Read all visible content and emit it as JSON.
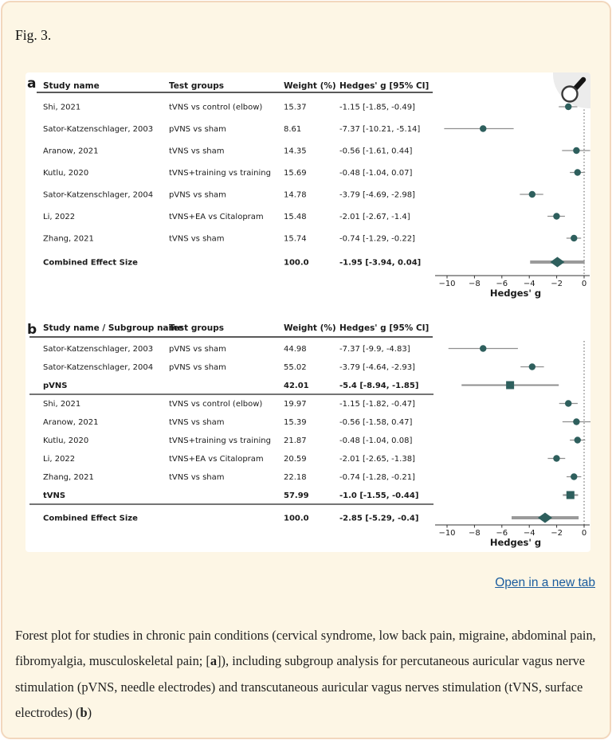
{
  "interface": {
    "figure_label": "Fig. 3.",
    "open_link_label": "Open in a new tab"
  },
  "caption": {
    "segments": [
      {
        "t": "Forest plot for studies in chronic pain conditions (cervical syndrome, low back pain, migraine, abdominal pain, fibromyalgia, musculoskeletal pain; [",
        "b": false
      },
      {
        "t": "a",
        "b": true
      },
      {
        "t": "]), including subgroup analysis for percutaneous auricular vagus nerve stimulation (pVNS, needle electrodes) and transcutaneous auricular vagus nerves stimulation (tVNS, surface electrodes) (",
        "b": false
      },
      {
        "t": "b",
        "b": true
      },
      {
        "t": ")",
        "b": false
      }
    ]
  },
  "colors": {
    "page_background": "#fdf6e5",
    "page_border": "#f2d7bd",
    "figure_background": "#ffffff",
    "marker_teal": "#2e5f5d",
    "ci_gray": "#8f8f8f",
    "summary_ci_gray": "#9a9a9a",
    "link_blue": "#1a5c9e",
    "table_line": "#222222"
  },
  "chart_data": [
    {
      "panel": "a",
      "type": "forest",
      "columns": [
        "Study name",
        "Test groups",
        "Weight (%)",
        "Hedges' g [95% CI]"
      ],
      "xlabel": "Hedges' g",
      "xticks": [
        -10,
        -8,
        -6,
        -4,
        -2,
        0
      ],
      "xlim": [
        -10.8,
        1.0
      ],
      "zero_line": 0,
      "rows": [
        {
          "study": "Shi, 2021",
          "group": "tVNS vs control (elbow)",
          "weight": "15.37",
          "ci_text": "-1.15 [-1.85, -0.49]",
          "g": -1.15,
          "lo": -1.85,
          "hi": -0.49,
          "marker": "circle",
          "bold": false,
          "sep_after": false
        },
        {
          "study": "Sator-Katzenschlager, 2003",
          "group": "pVNS vs sham",
          "weight": "8.61",
          "ci_text": "-7.37 [-10.21, -5.14]",
          "g": -7.37,
          "lo": -10.21,
          "hi": -5.14,
          "marker": "circle",
          "bold": false,
          "sep_after": false
        },
        {
          "study": "Aranow, 2021",
          "group": "tVNS vs sham",
          "weight": "14.35",
          "ci_text": "-0.56 [-1.61, 0.44]",
          "g": -0.56,
          "lo": -1.61,
          "hi": 0.44,
          "marker": "circle",
          "bold": false,
          "sep_after": false
        },
        {
          "study": "Kutlu, 2020",
          "group": "tVNS+training vs training",
          "weight": "15.69",
          "ci_text": "-0.48 [-1.04, 0.07]",
          "g": -0.48,
          "lo": -1.04,
          "hi": 0.07,
          "marker": "circle",
          "bold": false,
          "sep_after": false
        },
        {
          "study": "Sator-Katzenschlager, 2004",
          "group": "pVNS vs sham",
          "weight": "14.78",
          "ci_text": "-3.79 [-4.69, -2.98]",
          "g": -3.79,
          "lo": -4.69,
          "hi": -2.98,
          "marker": "circle",
          "bold": false,
          "sep_after": false
        },
        {
          "study": "Li, 2022",
          "group": "tVNS+EA vs Citalopram",
          "weight": "15.48",
          "ci_text": "-2.01 [-2.67, -1.4]",
          "g": -2.01,
          "lo": -2.67,
          "hi": -1.4,
          "marker": "circle",
          "bold": false,
          "sep_after": false
        },
        {
          "study": "Zhang, 2021",
          "group": "tVNS vs sham",
          "weight": "15.74",
          "ci_text": "-0.74 [-1.29, -0.22]",
          "g": -0.74,
          "lo": -1.29,
          "hi": -0.22,
          "marker": "circle",
          "bold": false,
          "sep_after": false
        },
        {
          "study": "Combined Effect Size",
          "group": "",
          "weight": "100.0",
          "ci_text": "-1.95 [-3.94, 0.04]",
          "g": -1.95,
          "lo": -3.94,
          "hi": 0.04,
          "marker": "diamond",
          "bold": true,
          "sep_after": false
        }
      ]
    },
    {
      "panel": "b",
      "type": "forest",
      "columns": [
        "Study name / Subgroup name",
        "Test groups",
        "Weight (%)",
        "Hedges' g [95% CI]"
      ],
      "xlabel": "Hedges' g",
      "xticks": [
        -10,
        -8,
        -6,
        -4,
        -2,
        0
      ],
      "xlim": [
        -10.8,
        1.0
      ],
      "zero_line": 0,
      "rows": [
        {
          "study": "Sator-Katzenschlager, 2003",
          "group": "pVNS vs sham",
          "weight": "44.98",
          "ci_text": "-7.37 [-9.9, -4.83]",
          "g": -7.37,
          "lo": -9.9,
          "hi": -4.83,
          "marker": "circle",
          "bold": false,
          "sep_after": false
        },
        {
          "study": "Sator-Katzenschlager, 2004",
          "group": "pVNS vs sham",
          "weight": "55.02",
          "ci_text": "-3.79 [-4.64, -2.93]",
          "g": -3.79,
          "lo": -4.64,
          "hi": -2.93,
          "marker": "circle",
          "bold": false,
          "sep_after": false
        },
        {
          "study": "pVNS",
          "group": "",
          "weight": "42.01",
          "ci_text": "-5.4 [-8.94, -1.85]",
          "g": -5.4,
          "lo": -8.94,
          "hi": -1.85,
          "marker": "square",
          "bold": true,
          "sep_after": true
        },
        {
          "study": "Shi, 2021",
          "group": "tVNS vs control (elbow)",
          "weight": "19.97",
          "ci_text": "-1.15 [-1.82, -0.47]",
          "g": -1.15,
          "lo": -1.82,
          "hi": -0.47,
          "marker": "circle",
          "bold": false,
          "sep_after": false
        },
        {
          "study": "Aranow, 2021",
          "group": "tVNS vs sham",
          "weight": "15.39",
          "ci_text": "-0.56 [-1.58, 0.47]",
          "g": -0.56,
          "lo": -1.58,
          "hi": 0.47,
          "marker": "circle",
          "bold": false,
          "sep_after": false
        },
        {
          "study": "Kutlu, 2020",
          "group": "tVNS+training vs training",
          "weight": "21.87",
          "ci_text": "-0.48 [-1.04, 0.08]",
          "g": -0.48,
          "lo": -1.04,
          "hi": 0.08,
          "marker": "circle",
          "bold": false,
          "sep_after": false
        },
        {
          "study": "Li, 2022",
          "group": "tVNS+EA vs Citalopram",
          "weight": "20.59",
          "ci_text": "-2.01 [-2.65, -1.38]",
          "g": -2.01,
          "lo": -2.65,
          "hi": -1.38,
          "marker": "circle",
          "bold": false,
          "sep_after": false
        },
        {
          "study": "Zhang, 2021",
          "group": "tVNS vs sham",
          "weight": "22.18",
          "ci_text": "-0.74 [-1.28, -0.21]",
          "g": -0.74,
          "lo": -1.28,
          "hi": -0.21,
          "marker": "circle",
          "bold": false,
          "sep_after": false
        },
        {
          "study": "tVNS",
          "group": "",
          "weight": "57.99",
          "ci_text": "-1.0 [-1.55, -0.44]",
          "g": -1.0,
          "lo": -1.55,
          "hi": -0.44,
          "marker": "square",
          "bold": true,
          "sep_after": true
        },
        {
          "study": "Combined Effect Size",
          "group": "",
          "weight": "100.0",
          "ci_text": "-2.85 [-5.29, -0.4]",
          "g": -2.85,
          "lo": -5.29,
          "hi": -0.4,
          "marker": "diamond",
          "bold": true,
          "sep_after": false
        }
      ]
    }
  ]
}
